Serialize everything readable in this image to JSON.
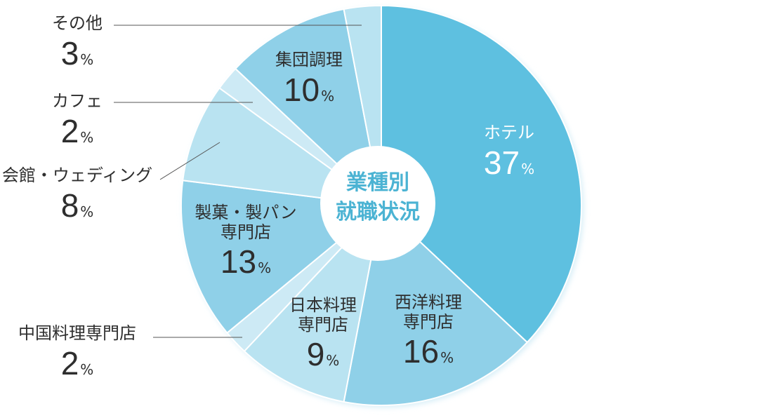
{
  "chart_data": {
    "type": "pie",
    "donut": true,
    "center_title": [
      "業種別",
      "就職状況"
    ],
    "unit": "%",
    "slices": [
      {
        "label": "ホテル",
        "value": 37,
        "color": "#5ec0e0"
      },
      {
        "label": "西洋料理\n専門店",
        "value": 16,
        "color": "#8fd0e8"
      },
      {
        "label": "日本料理\n専門店",
        "value": 9,
        "color": "#b9e3f1"
      },
      {
        "label": "中国料理専門店",
        "value": 2,
        "color": "#cdeaf5"
      },
      {
        "label": "製菓・製パン\n専門店",
        "value": 13,
        "color": "#8fd0e8"
      },
      {
        "label": "会館・ウェディング",
        "value": 8,
        "color": "#b9e3f1"
      },
      {
        "label": "カフェ",
        "value": 2,
        "color": "#cdeaf5"
      },
      {
        "label": "集団調理",
        "value": 10,
        "color": "#8fd0e8"
      },
      {
        "label": "その他",
        "value": 3,
        "color": "#b9e3f1"
      }
    ]
  }
}
